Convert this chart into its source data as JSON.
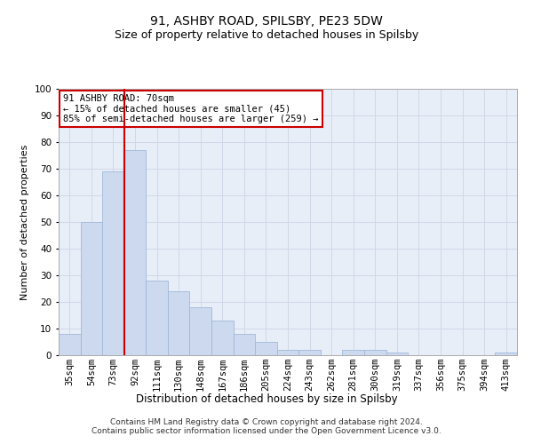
{
  "title1": "91, ASHBY ROAD, SPILSBY, PE23 5DW",
  "title2": "Size of property relative to detached houses in Spilsby",
  "xlabel": "Distribution of detached houses by size in Spilsby",
  "ylabel": "Number of detached properties",
  "categories": [
    "35sqm",
    "54sqm",
    "73sqm",
    "92sqm",
    "111sqm",
    "130sqm",
    "148sqm",
    "167sqm",
    "186sqm",
    "205sqm",
    "224sqm",
    "243sqm",
    "262sqm",
    "281sqm",
    "300sqm",
    "319sqm",
    "337sqm",
    "356sqm",
    "375sqm",
    "394sqm",
    "413sqm"
  ],
  "values": [
    8,
    50,
    69,
    77,
    28,
    24,
    18,
    13,
    8,
    5,
    2,
    2,
    0,
    2,
    2,
    1,
    0,
    0,
    0,
    0,
    1
  ],
  "bar_color": "#ccd9ee",
  "bar_edge_color": "#a0b8d8",
  "annotation_text": "91 ASHBY ROAD: 70sqm\n← 15% of detached houses are smaller (45)\n85% of semi-detached houses are larger (259) →",
  "annotation_box_color": "#ffffff",
  "annotation_box_edge": "#cc0000",
  "red_line_color": "#cc0000",
  "grid_color": "#d0d8e8",
  "background_color": "#e8eef8",
  "ylim": [
    0,
    100
  ],
  "footer": "Contains HM Land Registry data © Crown copyright and database right 2024.\nContains public sector information licensed under the Open Government Licence v3.0.",
  "title1_fontsize": 10,
  "title2_fontsize": 9,
  "xlabel_fontsize": 8.5,
  "ylabel_fontsize": 8,
  "tick_fontsize": 7.5,
  "footer_fontsize": 6.5
}
